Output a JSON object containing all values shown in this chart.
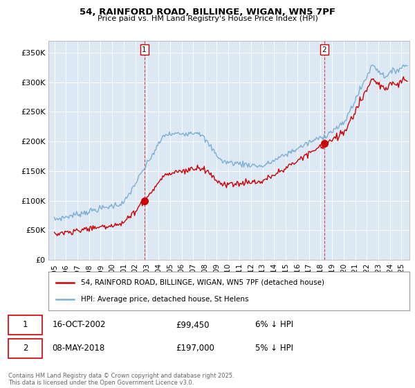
{
  "title_line1": "54, RAINFORD ROAD, BILLINGE, WIGAN, WN5 7PF",
  "title_line2": "Price paid vs. HM Land Registry's House Price Index (HPI)",
  "bg_color": "#ffffff",
  "plot_bg_color": "#dce9f5",
  "grid_color": "#ffffff",
  "hpi_color": "#7bafd4",
  "sale_color": "#cc0000",
  "marker1_year": 2002.79,
  "marker1_price": 99450,
  "marker2_year": 2018.35,
  "marker2_price": 197000,
  "ylim": [
    0,
    370000
  ],
  "yticks": [
    0,
    50000,
    100000,
    150000,
    200000,
    250000,
    300000,
    350000
  ],
  "ytick_labels": [
    "£0",
    "£50K",
    "£100K",
    "£150K",
    "£200K",
    "£250K",
    "£300K",
    "£350K"
  ],
  "xlim_start": 1994.5,
  "xlim_end": 2025.7,
  "xticks": [
    1995,
    1996,
    1997,
    1998,
    1999,
    2000,
    2001,
    2002,
    2003,
    2004,
    2005,
    2006,
    2007,
    2008,
    2009,
    2010,
    2011,
    2012,
    2013,
    2014,
    2015,
    2016,
    2017,
    2018,
    2019,
    2020,
    2021,
    2022,
    2023,
    2024,
    2025
  ],
  "legend_label1": "54, RAINFORD ROAD, BILLINGE, WIGAN, WN5 7PF (detached house)",
  "legend_label2": "HPI: Average price, detached house, St Helens",
  "note1_date": "16-OCT-2002",
  "note1_price": "£99,450",
  "note1_pct": "6% ↓ HPI",
  "note2_date": "08-MAY-2018",
  "note2_price": "£197,000",
  "note2_pct": "5% ↓ HPI",
  "footer": "Contains HM Land Registry data © Crown copyright and database right 2025.\nThis data is licensed under the Open Government Licence v3.0."
}
